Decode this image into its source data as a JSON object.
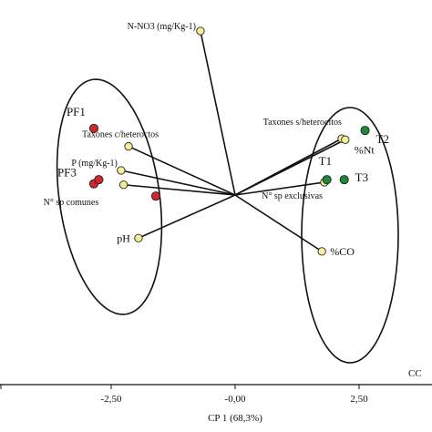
{
  "chart_data": {
    "type": "scatter",
    "title": "",
    "xlabel": "CP 1 (68,3%)",
    "ylabel": "",
    "corner_label": "CC",
    "xticks": [
      {
        "value": -2.5,
        "label": "-2,50"
      },
      {
        "value": 0.0,
        "label": "-0,00"
      },
      {
        "value": 2.5,
        "label": "2,50"
      }
    ],
    "xticks_partial": [
      {
        "value": -5.0
      }
    ],
    "sites": [
      {
        "label": "PF1",
        "x": -2.85,
        "y": 1.3,
        "color": "#d4262c"
      },
      {
        "label": "PF3",
        "x": -2.85,
        "y": 0.22,
        "color": "#d4262c"
      },
      {
        "label": "",
        "x": -2.75,
        "y": 0.3,
        "color": "#d4262c"
      },
      {
        "label": "",
        "x": -1.6,
        "y": -0.02,
        "color": "#d4262c"
      },
      {
        "label": "T2",
        "x": 2.62,
        "y": 1.26,
        "color": "#1a8a3a"
      },
      {
        "label": "T1",
        "x": 1.85,
        "y": 0.3,
        "color": "#1a8a3a"
      },
      {
        "label": "T3",
        "x": 2.2,
        "y": 0.3,
        "color": "#1a8a3a"
      }
    ],
    "vectors": [
      {
        "label": "N-NO3 (mg/Kg-1)",
        "x": -0.7,
        "y": 3.2
      },
      {
        "label": "Taxones c/heteroctos",
        "x": -2.15,
        "y": 0.95
      },
      {
        "label": "P (mg/Kg-1)",
        "x": -2.3,
        "y": 0.48
      },
      {
        "label": "N° sp comunes",
        "x": -2.25,
        "y": 0.2
      },
      {
        "label": "pH",
        "x": -1.95,
        "y": -0.84
      },
      {
        "label": "Taxones s/heterocitos",
        "x": 2.15,
        "y": 1.1
      },
      {
        "label": "%Nt",
        "x": 2.22,
        "y": 1.08
      },
      {
        "label": "N° sp exclusivas",
        "x": 1.8,
        "y": 0.25
      },
      {
        "label": "%CO",
        "x": 1.75,
        "y": -1.1
      }
    ],
    "groups": [
      {
        "name": "PF",
        "ellipse": true
      },
      {
        "name": "T",
        "ellipse": true
      }
    ],
    "colors": {
      "vector_point": "#f5f09a",
      "red_site": "#d4262c",
      "green_site": "#1a8a3a"
    },
    "grid": false,
    "legend": "none"
  }
}
